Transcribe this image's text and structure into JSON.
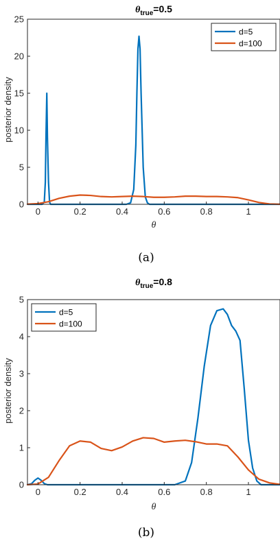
{
  "chart_data": [
    {
      "type": "line",
      "title": {
        "prefix": "θ",
        "subscript": "true",
        "suffix": "=0.5"
      },
      "caption": "(a)",
      "xlabel": "θ",
      "ylabel": "posterior density",
      "xlim": [
        -0.05,
        1.15
      ],
      "ylim": [
        0,
        25
      ],
      "xticks": [
        0,
        0.2,
        0.4,
        0.6,
        0.8,
        1
      ],
      "xtick_labels": [
        "0",
        "0.2",
        "0.4",
        "0.6",
        "0.8",
        "1"
      ],
      "yticks": [
        0,
        5,
        10,
        15,
        20,
        25
      ],
      "ytick_labels": [
        "0",
        "5",
        "10",
        "15",
        "20",
        "25"
      ],
      "legend_position": "top-right",
      "grid": false,
      "series": [
        {
          "name": "d=5",
          "color": "#0072BD",
          "x": [
            -0.05,
            0.02,
            0.03,
            0.035,
            0.038,
            0.042,
            0.045,
            0.05,
            0.055,
            0.06,
            0.07,
            0.42,
            0.44,
            0.455,
            0.465,
            0.47,
            0.475,
            0.48,
            0.485,
            0.49,
            0.5,
            0.51,
            0.52,
            0.53,
            1.15
          ],
          "y": [
            0,
            0,
            0.3,
            3,
            9,
            15,
            9,
            3,
            0.3,
            0,
            0,
            0,
            0.2,
            2,
            8,
            15,
            21,
            22.7,
            21,
            15,
            5,
            1,
            0.2,
            0,
            0
          ]
        },
        {
          "name": "d=100",
          "color": "#D95319",
          "x": [
            -0.05,
            0.0,
            0.05,
            0.1,
            0.15,
            0.2,
            0.25,
            0.3,
            0.35,
            0.4,
            0.45,
            0.5,
            0.55,
            0.6,
            0.65,
            0.7,
            0.75,
            0.8,
            0.85,
            0.9,
            0.95,
            1.0,
            1.05,
            1.1,
            1.15
          ],
          "y": [
            0.02,
            0.1,
            0.35,
            0.8,
            1.1,
            1.25,
            1.2,
            1.05,
            1.0,
            1.05,
            1.1,
            1.05,
            0.95,
            0.95,
            1.0,
            1.1,
            1.1,
            1.05,
            1.05,
            1.0,
            0.9,
            0.6,
            0.25,
            0.05,
            0.01
          ]
        }
      ]
    },
    {
      "type": "line",
      "title": {
        "prefix": "θ",
        "subscript": "true",
        "suffix": "=0.8"
      },
      "caption": "(b)",
      "xlabel": "θ",
      "ylabel": "posterior density",
      "xlim": [
        -0.05,
        1.15
      ],
      "ylim": [
        0,
        5
      ],
      "xticks": [
        0,
        0.2,
        0.4,
        0.6,
        0.8,
        1
      ],
      "xtick_labels": [
        "0",
        "0.2",
        "0.4",
        "0.6",
        "0.8",
        "1"
      ],
      "yticks": [
        0,
        1,
        2,
        3,
        4,
        5
      ],
      "ytick_labels": [
        "0",
        "1",
        "2",
        "3",
        "4",
        "5"
      ],
      "legend_position": "top-left",
      "grid": false,
      "series": [
        {
          "name": "d=5",
          "color": "#0072BD",
          "x": [
            -0.05,
            -0.03,
            -0.015,
            0.0,
            0.015,
            0.03,
            0.045,
            0.06,
            0.65,
            0.7,
            0.73,
            0.76,
            0.79,
            0.82,
            0.85,
            0.88,
            0.9,
            0.92,
            0.94,
            0.96,
            0.98,
            1.0,
            1.02,
            1.04,
            1.06,
            1.15
          ],
          "y": [
            0.0,
            0.03,
            0.12,
            0.18,
            0.12,
            0.03,
            0.0,
            0.0,
            0.0,
            0.1,
            0.6,
            1.8,
            3.2,
            4.3,
            4.7,
            4.75,
            4.6,
            4.3,
            4.15,
            3.9,
            2.6,
            1.2,
            0.45,
            0.1,
            0.0,
            0.0
          ]
        },
        {
          "name": "d=100",
          "color": "#D95319",
          "x": [
            -0.05,
            0.0,
            0.05,
            0.1,
            0.15,
            0.2,
            0.25,
            0.3,
            0.35,
            0.4,
            0.45,
            0.5,
            0.55,
            0.6,
            0.65,
            0.7,
            0.75,
            0.8,
            0.85,
            0.9,
            0.95,
            1.0,
            1.05,
            1.1,
            1.15
          ],
          "y": [
            0.0,
            0.02,
            0.2,
            0.65,
            1.05,
            1.18,
            1.15,
            0.98,
            0.92,
            1.02,
            1.18,
            1.27,
            1.25,
            1.15,
            1.18,
            1.2,
            1.16,
            1.1,
            1.1,
            1.05,
            0.75,
            0.4,
            0.15,
            0.05,
            0.01
          ]
        }
      ]
    }
  ]
}
